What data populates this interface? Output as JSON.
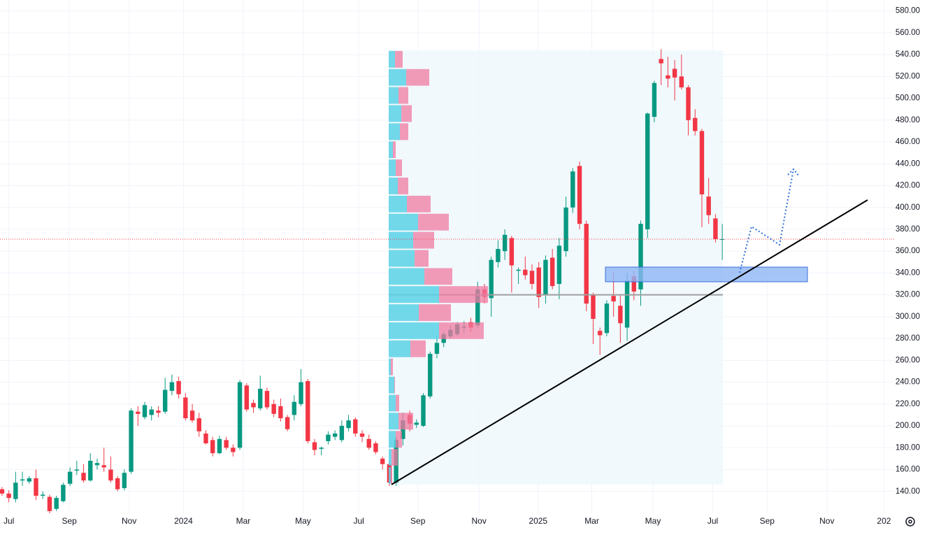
{
  "chart_data": {
    "type": "candlestick",
    "xlim": [
      -0.3,
      131.4
    ],
    "xticks": [
      {
        "value": 1.0,
        "label": "Jul"
      },
      {
        "value": 9.9,
        "label": "Sep"
      },
      {
        "value": 18.7,
        "label": "Nov"
      },
      {
        "value": 26.7,
        "label": "2024"
      },
      {
        "value": 35.5,
        "label": "Mar"
      },
      {
        "value": 44.3,
        "label": "May"
      },
      {
        "value": 52.5,
        "label": "Jul"
      },
      {
        "value": 61.2,
        "label": "Sep"
      },
      {
        "value": 70.2,
        "label": "Nov"
      },
      {
        "value": 78.9,
        "label": "2025"
      },
      {
        "value": 86.8,
        "label": "Mar"
      },
      {
        "value": 95.8,
        "label": "May"
      },
      {
        "value": 104.6,
        "label": "Jul"
      },
      {
        "value": 112.6,
        "label": "Sep"
      },
      {
        "value": 121.4,
        "label": "Nov"
      },
      {
        "value": 129.8,
        "label": "202"
      }
    ],
    "ylim": [
      120,
      590
    ],
    "yticks": [
      {
        "value": 140,
        "label": "140.00"
      },
      {
        "value": 160,
        "label": "160.00"
      },
      {
        "value": 180,
        "label": "180.00"
      },
      {
        "value": 200,
        "label": "200.00"
      },
      {
        "value": 220,
        "label": "220.00"
      },
      {
        "value": 240,
        "label": "240.00"
      },
      {
        "value": 260,
        "label": "260.00"
      },
      {
        "value": 280,
        "label": "280.00"
      },
      {
        "value": 300,
        "label": "300.00"
      },
      {
        "value": 320,
        "label": "320.00"
      },
      {
        "value": 340,
        "label": "340.00"
      },
      {
        "value": 360,
        "label": "360.00"
      },
      {
        "value": 380,
        "label": "380.00"
      },
      {
        "value": 400,
        "label": "400.00"
      },
      {
        "value": 420,
        "label": "420.00"
      },
      {
        "value": 440,
        "label": "440.00"
      },
      {
        "value": 460,
        "label": "460.00"
      },
      {
        "value": 480,
        "label": "480.00"
      },
      {
        "value": 500,
        "label": "500.00"
      },
      {
        "value": 520,
        "label": "520.00"
      },
      {
        "value": 540,
        "label": "540.00"
      },
      {
        "value": 560,
        "label": "560.00"
      },
      {
        "value": 580,
        "label": "580.00"
      }
    ],
    "grid": true,
    "up_color": "#089981",
    "down_color": "#f23645",
    "open": [
      142,
      138,
      133,
      150,
      149,
      152,
      136,
      135,
      124,
      131,
      147,
      159,
      157,
      150,
      164,
      164,
      160,
      152,
      143,
      158,
      213,
      208,
      210,
      214,
      213,
      232,
      241,
      226,
      214,
      207,
      193,
      187,
      175,
      187,
      180,
      180,
      237,
      221,
      216,
      232,
      220,
      218,
      208,
      210,
      220,
      241,
      185,
      179,
      186,
      190,
      187,
      198,
      206,
      193,
      188,
      184,
      170,
      165,
      148,
      188,
      210,
      201,
      200,
      227,
      266,
      276,
      282,
      284,
      290,
      295,
      292,
      325,
      317,
      350,
      360,
      372,
      342,
      343,
      342,
      345,
      320,
      354,
      330,
      360,
      400,
      438,
      385,
      320,
      287,
      285,
      319,
      310,
      290,
      337,
      325,
      380,
      483,
      536,
      521,
      527,
      520,
      510,
      482,
      470,
      410,
      390,
      371
    ],
    "high": [
      144,
      141,
      158,
      158,
      154,
      160,
      140,
      137,
      136,
      148,
      162,
      168,
      165,
      175,
      170,
      180,
      172,
      154,
      160,
      216,
      218,
      222,
      218,
      218,
      244,
      247,
      245,
      230,
      220,
      212,
      196,
      190,
      191,
      190,
      183,
      242,
      239,
      224,
      246,
      235,
      224,
      225,
      210,
      228,
      252,
      243,
      188,
      181,
      195,
      196,
      205,
      210,
      208,
      196,
      192,
      186,
      172,
      168,
      190,
      212,
      214,
      206,
      230,
      268,
      283,
      286,
      292,
      295,
      296,
      299,
      332,
      330,
      355,
      370,
      380,
      374,
      345,
      355,
      348,
      350,
      356,
      362,
      372,
      410,
      436,
      442,
      388,
      322,
      290,
      315,
      340,
      320,
      340,
      342,
      388,
      487,
      516,
      545,
      538,
      535,
      540,
      512,
      490,
      472,
      427,
      394,
      385
    ],
    "low": [
      136,
      130,
      130,
      145,
      147,
      132,
      133,
      120,
      122,
      130,
      145,
      155,
      148,
      149,
      160,
      158,
      148,
      140,
      141,
      156,
      200,
      206,
      205,
      208,
      211,
      228,
      225,
      205,
      203,
      190,
      183,
      172,
      174,
      178,
      172,
      178,
      213,
      212,
      214,
      215,
      208,
      204,
      195,
      205,
      218,
      184,
      173,
      173,
      183,
      187,
      185,
      195,
      190,
      185,
      178,
      174,
      160,
      145,
      145,
      182,
      195,
      198,
      199,
      225,
      262,
      272,
      280,
      282,
      285,
      286,
      290,
      312,
      300,
      345,
      352,
      322,
      330,
      334,
      325,
      308,
      312,
      325,
      316,
      355,
      395,
      380,
      305,
      275,
      265,
      282,
      300,
      276,
      278,
      315,
      310,
      372,
      478,
      512,
      510,
      498,
      508,
      466,
      466,
      382,
      385,
      368,
      352
    ],
    "close": [
      138,
      134,
      148,
      151,
      152,
      136,
      137,
      122,
      134,
      146,
      158,
      160,
      150,
      168,
      166,
      162,
      150,
      142,
      157,
      214,
      211,
      219,
      215,
      212,
      233,
      240,
      229,
      207,
      205,
      195,
      184,
      175,
      188,
      180,
      176,
      240,
      215,
      217,
      234,
      217,
      211,
      207,
      197,
      222,
      240,
      186,
      178,
      180,
      192,
      193,
      200,
      205,
      193,
      190,
      180,
      176,
      165,
      148,
      187,
      205,
      202,
      203,
      228,
      266,
      276,
      284,
      288,
      293,
      291,
      290,
      325,
      318,
      352,
      362,
      375,
      347,
      343,
      338,
      330,
      318,
      352,
      328,
      365,
      400,
      433,
      385,
      312,
      298,
      283,
      312,
      314,
      294,
      333,
      323,
      385,
      486,
      514,
      532,
      518,
      519,
      510,
      480,
      470,
      412,
      393,
      371,
      371
    ],
    "profile": {
      "bins": [
        146.3,
        162.9,
        179.4,
        196.0,
        212.6,
        229.1,
        245.7,
        262.3,
        278.9,
        295.4,
        312.0,
        328.6,
        345.1,
        361.7,
        378.3,
        394.9,
        411.4,
        428.0,
        444.6,
        461.1,
        477.7,
        494.3,
        510.9,
        527.4,
        544.0
      ],
      "up": [
        3,
        4,
        10,
        14,
        10,
        8,
        3,
        31,
        72,
        43,
        72,
        51,
        37,
        35,
        42,
        26,
        13,
        10,
        6,
        16,
        18,
        14,
        25,
        9
      ],
      "down": [
        2,
        9,
        9,
        21,
        5,
        1,
        3,
        22,
        64,
        46,
        70,
        40,
        20,
        30,
        44,
        34,
        15,
        9,
        4,
        12,
        15,
        14,
        33,
        11
      ],
      "up_color": "#5ad2e6",
      "down_color": "#f07aa0",
      "poc": 320
    }
  }
}
